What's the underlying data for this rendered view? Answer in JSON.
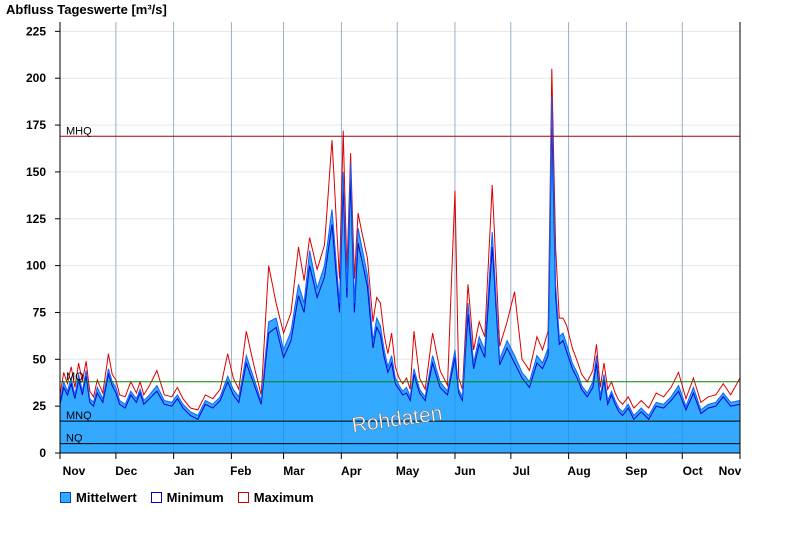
{
  "title": "Abfluss Tageswerte [m³/s]",
  "watermark": "Rohdaten",
  "colors": {
    "mean_fill": "#33aaff",
    "mean_line": "#1060ff",
    "min_line": "#0000cc",
    "max_line": "#dd0000",
    "mhq_line": "#aa0000",
    "mq_line": "#008800",
    "low_lines": "#000000",
    "grid": "#e6e6e6"
  },
  "chart_data": {
    "type": "area",
    "title": "Abfluss Tageswerte [m³/s]",
    "xlabel": "",
    "ylabel": "",
    "ylim": [
      0,
      230
    ],
    "yticks": [
      0,
      25,
      50,
      75,
      100,
      125,
      150,
      175,
      200,
      225
    ],
    "month_labels": [
      "Nov",
      "Dec",
      "Jan",
      "Feb",
      "Mar",
      "Apr",
      "May",
      "Jun",
      "Jul",
      "Aug",
      "Sep",
      "Oct",
      "Nov"
    ],
    "reference_lines": [
      {
        "label": "MHQ",
        "value": 169
      },
      {
        "label": "MQ",
        "value": 38
      },
      {
        "label": "MNQ",
        "value": 17
      },
      {
        "label": "NQ",
        "value": 5
      }
    ],
    "grid": true,
    "legend": [
      "Mittelwert",
      "Minimum",
      "Maximum"
    ],
    "legend_position": "bottom-left",
    "anchors": {
      "day": [
        0,
        2,
        4,
        6,
        8,
        10,
        12,
        14,
        16,
        18,
        20,
        23,
        26,
        28,
        30,
        32,
        35,
        38,
        41,
        43,
        45,
        48,
        52,
        56,
        60,
        63,
        66,
        70,
        74,
        78,
        82,
        86,
        90,
        93,
        96,
        100,
        104,
        108,
        112,
        116,
        120,
        124,
        128,
        131,
        134,
        138,
        142,
        146,
        150,
        152,
        154,
        156,
        158,
        160,
        162,
        165,
        168,
        170,
        172,
        174,
        176,
        178,
        180,
        182,
        184,
        186,
        188,
        190,
        193,
        196,
        200,
        204,
        208,
        212,
        214,
        216,
        219,
        222,
        225,
        228,
        232,
        236,
        240,
        244,
        248,
        252,
        256,
        259,
        262,
        264,
        266,
        268,
        270,
        272,
        275,
        278,
        280,
        283,
        286,
        288,
        290,
        292,
        294,
        296,
        298,
        300,
        302,
        305,
        308,
        312,
        316,
        320,
        324,
        328,
        332,
        336,
        340,
        344,
        348,
        352,
        356,
        360,
        365
      ],
      "mean": [
        28,
        38,
        33,
        40,
        31,
        42,
        33,
        44,
        29,
        27,
        35,
        29,
        45,
        38,
        35,
        28,
        26,
        33,
        29,
        34,
        28,
        31,
        36,
        28,
        27,
        31,
        26,
        22,
        20,
        28,
        26,
        30,
        41,
        34,
        30,
        52,
        40,
        28,
        70,
        72,
        55,
        65,
        90,
        80,
        108,
        88,
        100,
        130,
        80,
        150,
        88,
        155,
        80,
        120,
        110,
        95,
        60,
        72,
        68,
        55,
        46,
        52,
        40,
        36,
        33,
        35,
        30,
        45,
        34,
        30,
        52,
        38,
        33,
        55,
        34,
        30,
        80,
        48,
        62,
        55,
        118,
        50,
        60,
        52,
        43,
        38,
        52,
        48,
        56,
        190,
        90,
        62,
        64,
        58,
        48,
        42,
        36,
        32,
        38,
        52,
        30,
        42,
        28,
        33,
        28,
        24,
        22,
        26,
        20,
        24,
        20,
        27,
        26,
        30,
        36,
        25,
        35,
        23,
        26,
        27,
        32,
        27,
        28
      ],
      "min": [
        26,
        35,
        31,
        37,
        29,
        39,
        31,
        41,
        27,
        25,
        32,
        27,
        42,
        36,
        32,
        26,
        24,
        31,
        27,
        32,
        26,
        29,
        33,
        26,
        25,
        29,
        24,
        20,
        18,
        26,
        24,
        28,
        38,
        31,
        27,
        48,
        37,
        26,
        64,
        67,
        51,
        60,
        84,
        75,
        100,
        83,
        94,
        122,
        75,
        142,
        83,
        146,
        75,
        112,
        103,
        89,
        56,
        67,
        63,
        51,
        43,
        48,
        37,
        34,
        31,
        32,
        28,
        42,
        32,
        28,
        48,
        35,
        31,
        51,
        32,
        28,
        74,
        45,
        58,
        51,
        110,
        47,
        56,
        48,
        40,
        35,
        48,
        45,
        52,
        178,
        84,
        58,
        60,
        54,
        45,
        39,
        34,
        30,
        35,
        48,
        28,
        39,
        26,
        31,
        26,
        22,
        20,
        24,
        18,
        22,
        18,
        25,
        24,
        28,
        33,
        23,
        32,
        21,
        24,
        25,
        30,
        25,
        26
      ],
      "max": [
        31,
        43,
        37,
        46,
        35,
        48,
        38,
        49,
        33,
        30,
        39,
        32,
        53,
        42,
        39,
        31,
        30,
        38,
        32,
        38,
        31,
        36,
        44,
        31,
        30,
        35,
        29,
        24,
        23,
        31,
        29,
        34,
        53,
        40,
        34,
        65,
        47,
        31,
        100,
        80,
        64,
        75,
        110,
        92,
        115,
        98,
        111,
        167,
        93,
        172,
        98,
        160,
        93,
        128,
        118,
        104,
        70,
        83,
        80,
        63,
        53,
        64,
        46,
        40,
        37,
        40,
        34,
        65,
        40,
        34,
        64,
        44,
        36,
        140,
        40,
        34,
        90,
        55,
        70,
        62,
        143,
        57,
        70,
        86,
        50,
        44,
        62,
        55,
        65,
        205,
        110,
        72,
        72,
        68,
        56,
        48,
        42,
        38,
        44,
        58,
        35,
        48,
        34,
        38,
        32,
        28,
        26,
        30,
        24,
        28,
        24,
        32,
        30,
        35,
        43,
        29,
        40,
        27,
        30,
        31,
        37,
        31,
        40
      ]
    }
  }
}
